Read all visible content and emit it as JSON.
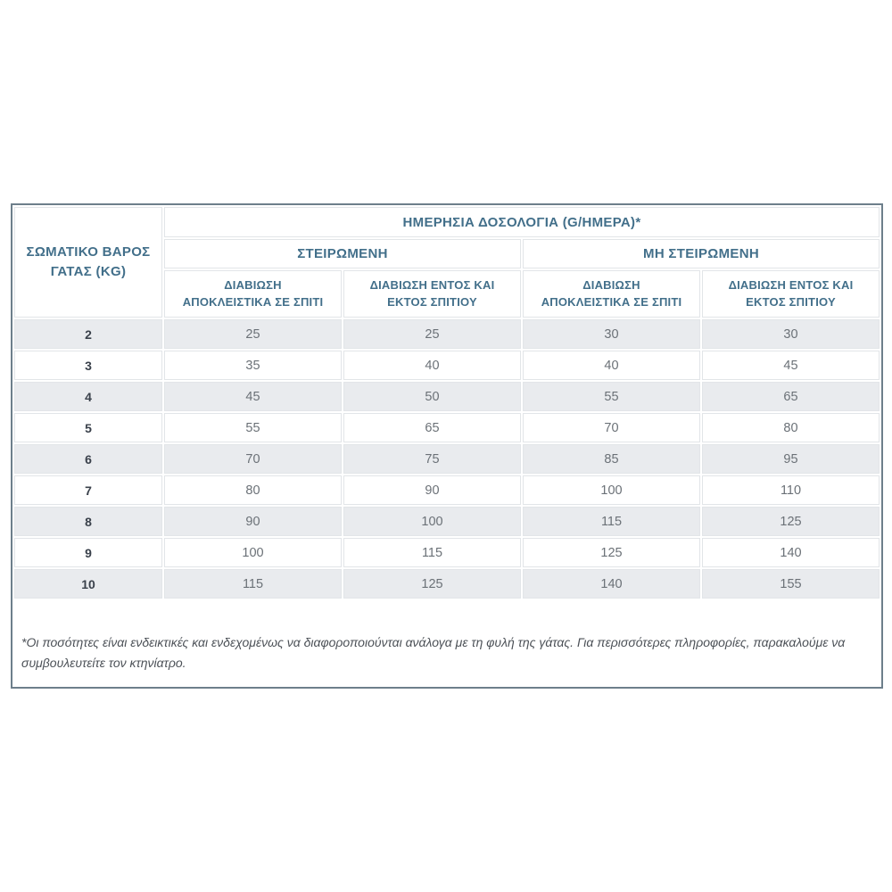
{
  "colors": {
    "background": "#ffffff",
    "outer_border": "#6d7f8b",
    "header_text": "#426f8a",
    "row_stripe": "#e9ebee",
    "value_text": "#6b7177",
    "weight_text": "#3a414b",
    "cell_hairline": "#e2e5e8",
    "footnote_text": "#4c5157"
  },
  "table": {
    "title": "ΗΜΕΡΗΣΙΑ ΔΟΣΟΛΟΓΙΑ (G/ΗΜΕΡΑ)*",
    "weight_header": "ΣΩΜΑΤΙΚΟ ΒΑΡΟΣ\nΓΑΤΑΣ (KG)",
    "groups": [
      {
        "label": "ΣΤΕΙΡΩΜΕΝΗ"
      },
      {
        "label": "ΜΗ ΣΤΕΙΡΩΜΕΝΗ"
      }
    ],
    "sub_headers": [
      "ΔΙΑΒΙΩΣΗ\nΑΠΟΚΛΕΙΣΤΙΚΑ ΣΕ ΣΠΙΤΙ",
      "ΔΙΑΒΙΩΣΗ ΕΝΤΟΣ ΚΑΙ\nΕΚΤΟΣ ΣΠΙΤΙΟΥ",
      "ΔΙΑΒΙΩΣΗ\nΑΠΟΚΛΕΙΣΤΙΚΑ ΣΕ ΣΠΙΤΙ",
      "ΔΙΑΒΙΩΣΗ ΕΝΤΟΣ ΚΑΙ\nΕΚΤΟΣ ΣΠΙΤΙΟΥ"
    ],
    "rows": [
      {
        "kg": "2",
        "values": [
          "25",
          "25",
          "30",
          "30"
        ]
      },
      {
        "kg": "3",
        "values": [
          "35",
          "40",
          "40",
          "45"
        ]
      },
      {
        "kg": "4",
        "values": [
          "45",
          "50",
          "55",
          "65"
        ]
      },
      {
        "kg": "5",
        "values": [
          "55",
          "65",
          "70",
          "80"
        ]
      },
      {
        "kg": "6",
        "values": [
          "70",
          "75",
          "85",
          "95"
        ]
      },
      {
        "kg": "7",
        "values": [
          "80",
          "90",
          "100",
          "110"
        ]
      },
      {
        "kg": "8",
        "values": [
          "90",
          "100",
          "115",
          "125"
        ]
      },
      {
        "kg": "9",
        "values": [
          "100",
          "115",
          "125",
          "140"
        ]
      },
      {
        "kg": "10",
        "values": [
          "115",
          "125",
          "140",
          "155"
        ]
      }
    ],
    "footnote": "*Οι ποσότητες είναι ενδεικτικές και ενδεχομένως να διαφοροποιούνται ανάλογα με τη φυλή της γάτας. Για περισσότερες πληροφορίες, παρακαλούμε να συμβουλευτείτε τον κτηνίατρο."
  },
  "chart_data": {
    "type": "table",
    "title": "ΗΜΕΡΗΣΙΑ ΔΟΣΟΛΟΓΙΑ (G/ΗΜΕΡΑ)*",
    "row_header": "ΣΩΜΑΤΙΚΟ ΒΑΡΟΣ ΓΑΤΑΣ (KG)",
    "column_groups": [
      "ΣΤΕΙΡΩΜΕΝΗ",
      "ΜΗ ΣΤΕΙΡΩΜΕΝΗ"
    ],
    "columns": [
      "ΣΩΜΑΤΙΚΟ ΒΑΡΟΣ ΓΑΤΑΣ (KG)",
      "ΣΤΕΙΡΩΜΕΝΗ - ΔΙΑΒΙΩΣΗ ΑΠΟΚΛΕΙΣΤΙΚΑ ΣΕ ΣΠΙΤΙ",
      "ΣΤΕΙΡΩΜΕΝΗ - ΔΙΑΒΙΩΣΗ ΕΝΤΟΣ ΚΑΙ ΕΚΤΟΣ ΣΠΙΤΙΟΥ",
      "ΜΗ ΣΤΕΙΡΩΜΕΝΗ - ΔΙΑΒΙΩΣΗ ΑΠΟΚΛΕΙΣΤΙΚΑ ΣΕ ΣΠΙΤΙ",
      "ΜΗ ΣΤΕΙΡΩΜΕΝΗ - ΔΙΑΒΙΩΣΗ ΕΝΤΟΣ ΚΑΙ ΕΚΤΟΣ ΣΠΙΤΙΟΥ"
    ],
    "rows": [
      [
        2,
        25,
        25,
        30,
        30
      ],
      [
        3,
        35,
        40,
        40,
        45
      ],
      [
        4,
        45,
        50,
        55,
        65
      ],
      [
        5,
        55,
        65,
        70,
        80
      ],
      [
        6,
        70,
        75,
        85,
        95
      ],
      [
        7,
        80,
        90,
        100,
        110
      ],
      [
        8,
        90,
        100,
        115,
        125
      ],
      [
        9,
        100,
        115,
        125,
        140
      ],
      [
        10,
        115,
        125,
        140,
        155
      ]
    ],
    "footnote": "*Οι ποσότητες είναι ενδεικτικές και ενδεχομένως να διαφοροποιούνται ανάλογα με τη φυλή της γάτας. Για περισσότερες πληροφορίες, παρακαλούμε να συμβουλευτείτε τον κτηνίατρο."
  }
}
